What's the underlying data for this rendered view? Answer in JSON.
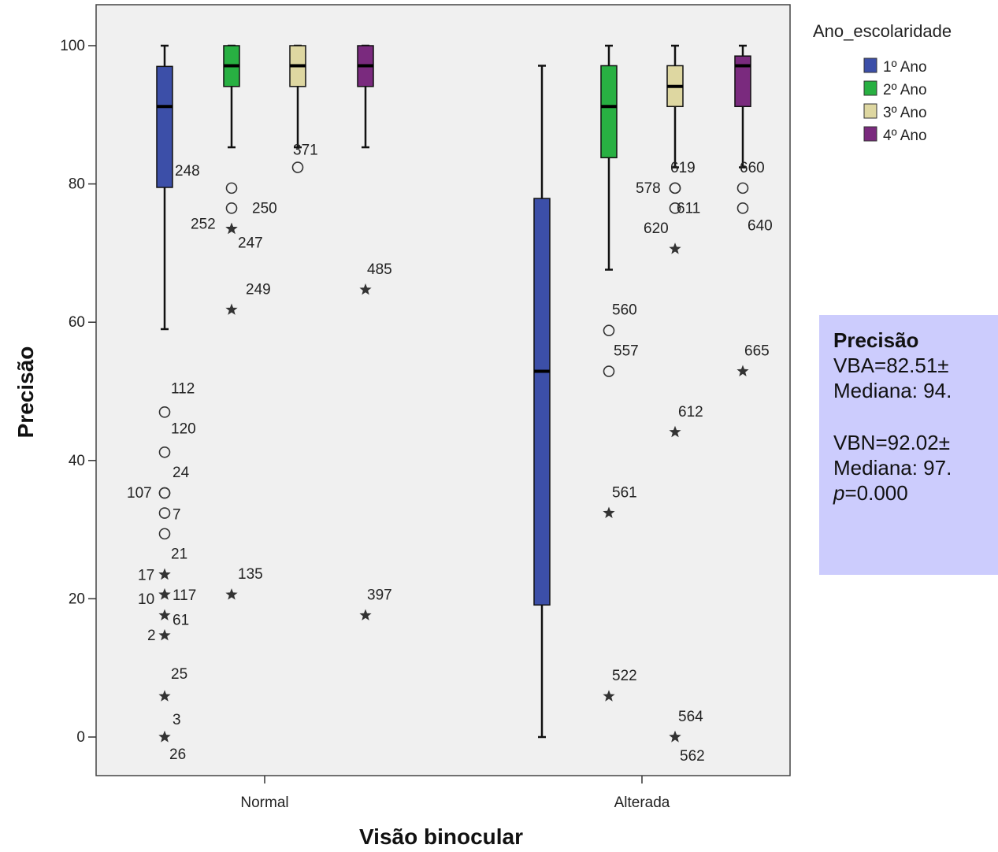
{
  "chart_data": {
    "type": "boxplot",
    "xlabel": "Visão binocular",
    "ylabel": "Precisão",
    "ylim": [
      0,
      100
    ],
    "yticks": [
      0,
      20,
      40,
      60,
      80,
      100
    ],
    "grid": false,
    "legend_placement": "top-right outside",
    "legend_title": "Ano_escolaridade",
    "categories": [
      "Normal",
      "Alterada"
    ],
    "series": [
      {
        "name": "1º Ano",
        "color": "#3c4fa8"
      },
      {
        "name": "2º Ano",
        "color": "#28b042"
      },
      {
        "name": "3º Ano",
        "color": "#ded7a1"
      },
      {
        "name": "4º Ano",
        "color": "#7a2a7e"
      }
    ],
    "boxes": [
      {
        "category": "Normal",
        "series": "1º Ano",
        "whisker_low": 59,
        "q1": 79.5,
        "median": 91.2,
        "q3": 97,
        "whisker_high": 100,
        "outliers": [
          {
            "label": "112",
            "value": 47,
            "kind": "circle"
          },
          {
            "label": "120",
            "value": 41.2,
            "kind": "circle"
          },
          {
            "label": "24",
            "value": 35.3,
            "kind": "circle"
          },
          {
            "label": "107",
            "value": 35.3,
            "kind": "circle"
          },
          {
            "label": "7",
            "value": 32.4,
            "kind": "circle"
          },
          {
            "label": "",
            "value": 29.4,
            "kind": "circle"
          },
          {
            "label": "21",
            "value": 23.5,
            "kind": "star"
          },
          {
            "label": "17",
            "value": 23.5,
            "kind": "star"
          },
          {
            "label": "117",
            "value": 20.6,
            "kind": "star"
          },
          {
            "label": "10",
            "value": 20.6,
            "kind": "star"
          },
          {
            "label": "61",
            "value": 17.6,
            "kind": "star"
          },
          {
            "label": "2",
            "value": 14.7,
            "kind": "star"
          },
          {
            "label": "25",
            "value": 5.9,
            "kind": "star"
          },
          {
            "label": "3",
            "value": 0,
            "kind": "star"
          },
          {
            "label": "26",
            "value": 0,
            "kind": "star"
          }
        ]
      },
      {
        "category": "Normal",
        "series": "2º Ano",
        "whisker_low": 85.3,
        "q1": 94.1,
        "median": 97.1,
        "q3": 100,
        "whisker_high": 100,
        "outliers": [
          {
            "label": "248",
            "value": 79.4,
            "kind": "circle"
          },
          {
            "label": "250",
            "value": 76.5,
            "kind": "circle"
          },
          {
            "label": "252",
            "value": 73.5,
            "kind": "star"
          },
          {
            "label": "247",
            "value": 73.5,
            "kind": "star"
          },
          {
            "label": "249",
            "value": 61.8,
            "kind": "star"
          },
          {
            "label": "135",
            "value": 20.6,
            "kind": "star"
          }
        ]
      },
      {
        "category": "Normal",
        "series": "3º Ano",
        "whisker_low": 85.3,
        "q1": 94.1,
        "median": 97.1,
        "q3": 100,
        "whisker_high": 100,
        "outliers": [
          {
            "label": "371",
            "value": 82.4,
            "kind": "circle"
          }
        ]
      },
      {
        "category": "Normal",
        "series": "4º Ano",
        "whisker_low": 85.3,
        "q1": 94.1,
        "median": 97.1,
        "q3": 100,
        "whisker_high": 100,
        "outliers": [
          {
            "label": "485",
            "value": 64.7,
            "kind": "star"
          },
          {
            "label": "397",
            "value": 17.6,
            "kind": "star"
          }
        ]
      },
      {
        "category": "Alterada",
        "series": "1º Ano",
        "whisker_low": 0,
        "q1": 19.1,
        "median": 52.9,
        "q3": 77.9,
        "whisker_high": 97.1,
        "outliers": []
      },
      {
        "category": "Alterada",
        "series": "2º Ano",
        "whisker_low": 67.6,
        "q1": 83.8,
        "median": 91.2,
        "q3": 97.1,
        "whisker_high": 100,
        "outliers": [
          {
            "label": "560",
            "value": 58.8,
            "kind": "circle"
          },
          {
            "label": "557",
            "value": 52.9,
            "kind": "circle"
          },
          {
            "label": "561",
            "value": 32.4,
            "kind": "star"
          },
          {
            "label": "522",
            "value": 5.9,
            "kind": "star"
          }
        ]
      },
      {
        "category": "Alterada",
        "series": "3º Ano",
        "whisker_low": 82.4,
        "q1": 91.2,
        "median": 94.1,
        "q3": 97.1,
        "whisker_high": 100,
        "outliers": [
          {
            "label": "619",
            "value": 79.4,
            "kind": "circle"
          },
          {
            "label": "578",
            "value": 79.4,
            "kind": "circle"
          },
          {
            "label": "611",
            "value": 76.5,
            "kind": "circle"
          },
          {
            "label": "620",
            "value": 70.6,
            "kind": "star"
          },
          {
            "label": "612",
            "value": 44.1,
            "kind": "star"
          },
          {
            "label": "564",
            "value": 0,
            "kind": "star"
          },
          {
            "label": "562",
            "value": 0,
            "kind": "star"
          }
        ]
      },
      {
        "category": "Alterada",
        "series": "4º Ano",
        "whisker_low": 82.4,
        "q1": 91.2,
        "median": 97.1,
        "q3": 98.5,
        "whisker_high": 100,
        "outliers": [
          {
            "label": "660",
            "value": 79.4,
            "kind": "circle"
          },
          {
            "label": "640",
            "value": 76.5,
            "kind": "circle"
          },
          {
            "label": "665",
            "value": 52.9,
            "kind": "star"
          }
        ]
      }
    ]
  },
  "annotation": {
    "title": "Precisão",
    "line1": "VBA=82.51±",
    "line2": "Mediana: 94.",
    "line3": "VBN=92.02±",
    "line4": "Mediana: 97.",
    "p_label": "p",
    "p_value": "=0.000"
  }
}
